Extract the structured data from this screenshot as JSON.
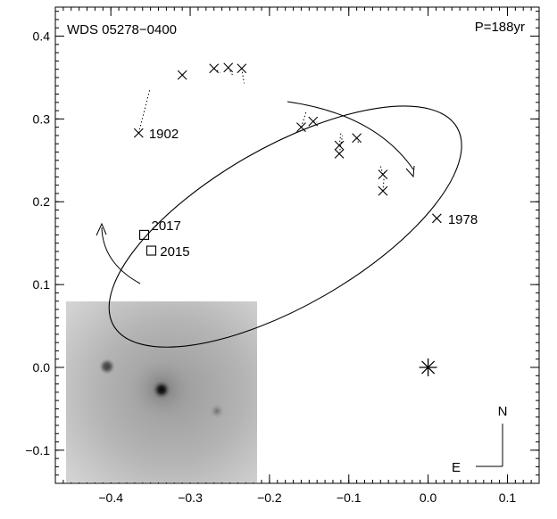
{
  "chart_data": {
    "type": "scatter",
    "title": "WDS 05278−0400",
    "period_label": "P=188yr",
    "xlabel": "",
    "ylabel": "",
    "xlim": [
      -0.47,
      0.14
    ],
    "ylim": [
      -0.14,
      0.435
    ],
    "x_ticks": [
      {
        "value": -0.4,
        "label": "−0.4"
      },
      {
        "value": -0.3,
        "label": "−0.3"
      },
      {
        "value": -0.2,
        "label": "−0.2"
      },
      {
        "value": -0.1,
        "label": "−0.1"
      },
      {
        "value": 0.0,
        "label": "0.0"
      },
      {
        "value": 0.1,
        "label": "0.1"
      }
    ],
    "y_ticks": [
      {
        "value": -0.1,
        "label": "−0.1"
      },
      {
        "value": 0.0,
        "label": "0.0"
      },
      {
        "value": 0.1,
        "label": "0.1"
      },
      {
        "value": 0.2,
        "label": "0.2"
      },
      {
        "value": 0.3,
        "label": "0.3"
      },
      {
        "value": 0.4,
        "label": "0.4"
      }
    ],
    "primary_star": {
      "x": 0.0,
      "y": 0.0
    },
    "orbit": {
      "center_x": -0.18,
      "center_y": 0.17,
      "semi_major": 0.25,
      "semi_minor": 0.1,
      "angle_deg": -30
    },
    "observations": [
      {
        "x": -0.365,
        "y": 0.283,
        "ox": -0.351,
        "oy": 0.335
      },
      {
        "x": -0.31,
        "y": 0.353,
        "ox": -0.308,
        "oy": 0.354
      },
      {
        "x": -0.27,
        "y": 0.361,
        "ox": -0.262,
        "oy": 0.356
      },
      {
        "x": -0.252,
        "y": 0.362,
        "ox": -0.246,
        "oy": 0.352
      },
      {
        "x": -0.235,
        "y": 0.361,
        "ox": -0.232,
        "oy": 0.343
      },
      {
        "x": -0.16,
        "y": 0.29,
        "ox": -0.154,
        "oy": 0.308
      },
      {
        "x": -0.145,
        "y": 0.297,
        "ox": -0.14,
        "oy": 0.296
      },
      {
        "x": -0.112,
        "y": 0.268,
        "ox": -0.11,
        "oy": 0.283
      },
      {
        "x": -0.112,
        "y": 0.258,
        "ox": -0.108,
        "oy": 0.28
      },
      {
        "x": -0.09,
        "y": 0.277,
        "ox": -0.087,
        "oy": 0.269
      },
      {
        "x": -0.057,
        "y": 0.233,
        "ox": -0.06,
        "oy": 0.243
      },
      {
        "x": -0.057,
        "y": 0.213,
        "ox": -0.055,
        "oy": 0.236
      },
      {
        "x": 0.011,
        "y": 0.18,
        "ox": 0.008,
        "oy": 0.178
      }
    ],
    "recent_observations": [
      {
        "x": -0.358,
        "y": 0.16
      },
      {
        "x": -0.349,
        "y": 0.141
      }
    ],
    "annotations": [
      {
        "text": "1902",
        "x": -0.352,
        "y": 0.283
      },
      {
        "text": "1978",
        "x": 0.025,
        "y": 0.18
      },
      {
        "text": "2017",
        "x": -0.349,
        "y": 0.172
      },
      {
        "text": "2015",
        "x": -0.338,
        "y": 0.141
      }
    ],
    "compass": {
      "north": "N",
      "east": "E"
    },
    "inset": "speckle image of the triple system",
    "grid": false,
    "legend": "none"
  }
}
